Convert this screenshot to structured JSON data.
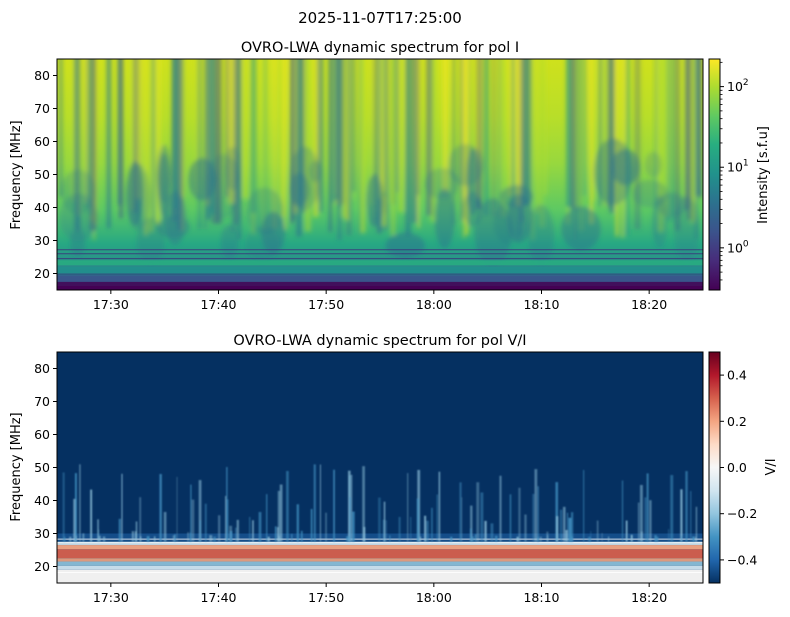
{
  "figure": {
    "suptitle": "2025-11-07T17:25:00"
  },
  "chart_data": [
    {
      "type": "heatmap",
      "title": "OVRO-LWA dynamic spectrum for pol I",
      "xlabel": "",
      "ylabel": "Frequency [MHz]",
      "x_tick_labels": [
        "17:30",
        "17:40",
        "17:50",
        "18:00",
        "18:10",
        "18:20"
      ],
      "x_tick_minutes_from_start": [
        5,
        15,
        25,
        35,
        45,
        55
      ],
      "x_range": [
        "17:25",
        "18:25"
      ],
      "y_ticks": [
        20,
        30,
        40,
        50,
        60,
        70,
        80
      ],
      "ylim": [
        15,
        85
      ],
      "colorbar": {
        "label": "Intensity [s.f.u]",
        "scale": "log",
        "colormap": "viridis",
        "range": [
          0.3,
          220
        ],
        "ticks": [
          {
            "value": 1,
            "base": "10",
            "exp": "0"
          },
          {
            "value": 10,
            "base": "10",
            "exp": "1"
          },
          {
            "value": 100,
            "base": "10",
            "exp": "2"
          }
        ]
      }
    },
    {
      "type": "heatmap",
      "title": "OVRO-LWA dynamic spectrum for pol V/I",
      "xlabel": "",
      "ylabel": "Frequency [MHz]",
      "x_tick_labels": [
        "17:30",
        "17:40",
        "17:50",
        "18:00",
        "18:10",
        "18:20"
      ],
      "x_tick_minutes_from_start": [
        5,
        15,
        25,
        35,
        45,
        55
      ],
      "x_range": [
        "17:25",
        "18:25"
      ],
      "y_ticks": [
        20,
        30,
        40,
        50,
        60,
        70,
        80
      ],
      "ylim": [
        15,
        85
      ],
      "colorbar": {
        "label": "V/I",
        "scale": "linear",
        "colormap": "RdBu_r",
        "range": [
          -0.5,
          0.5
        ],
        "ticks": [
          {
            "value": 0.4,
            "label": "0.4"
          },
          {
            "value": 0.2,
            "label": "0.2"
          },
          {
            "value": 0.0,
            "label": "0.0"
          },
          {
            "value": -0.2,
            "label": "−0.2"
          },
          {
            "value": -0.4,
            "label": "−0.4"
          }
        ]
      }
    }
  ]
}
